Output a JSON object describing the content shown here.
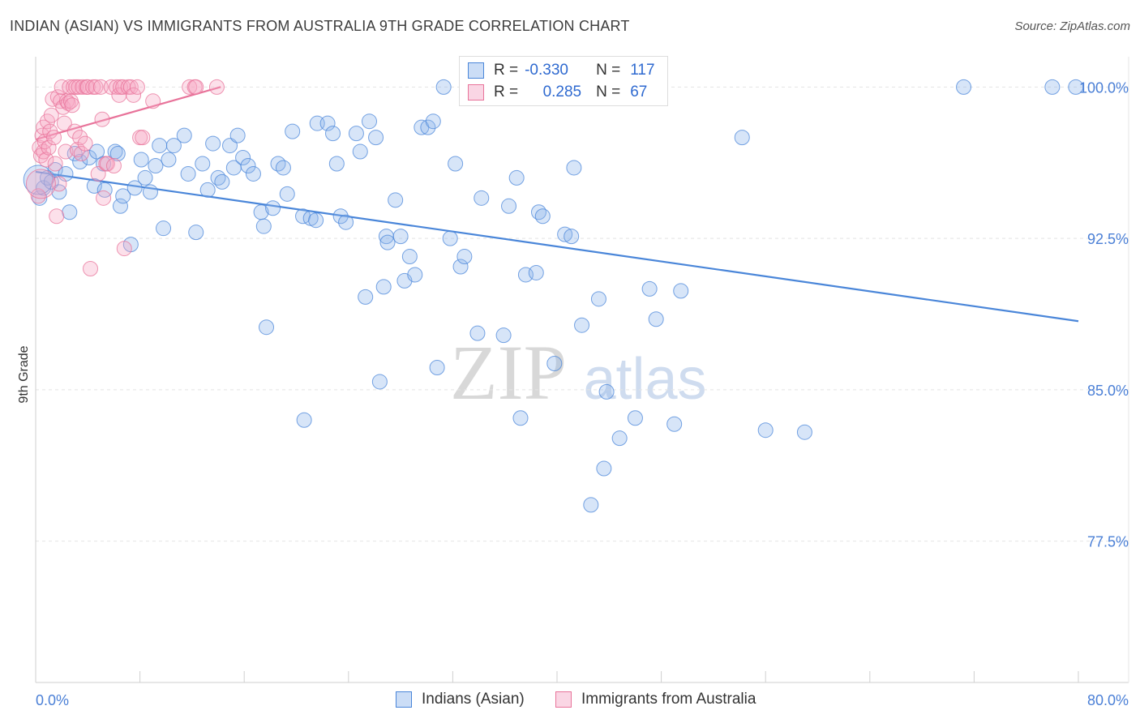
{
  "title": "INDIAN (ASIAN) VS IMMIGRANTS FROM AUSTRALIA 9TH GRADE CORRELATION CHART",
  "source": "Source: ZipAtlas.com",
  "watermark": "ZIPatlas",
  "legend": {
    "series1": {
      "r_label": "R =",
      "r_value": "-0.330",
      "n_label": "N =",
      "n_value": "117"
    },
    "series2": {
      "r_label": "R =",
      "r_value": "0.285",
      "n_label": "N =",
      "n_value": "67"
    }
  },
  "colors": {
    "blue": "#4a86d9",
    "blue_fill": "rgba(140,180,235,0.35)",
    "pink": "#e8739a",
    "pink_fill": "rgba(245,165,195,0.35)",
    "axis_text": "#4a7fd6",
    "grid": "#e4e4e4"
  },
  "chart_data": {
    "type": "scatter",
    "title": "INDIAN (ASIAN) VS IMMIGRANTS FROM AUSTRALIA 9TH GRADE CORRELATION CHART",
    "xlabel": "",
    "ylabel": "9th Grade",
    "xlim": [
      0,
      80
    ],
    "ylim": [
      70.5,
      101.5
    ],
    "x_tick_labels": [
      "0.0%",
      "80.0%"
    ],
    "y_ticks": [
      77.5,
      85.0,
      92.5,
      100.0
    ],
    "y_tick_labels": [
      "77.5%",
      "85.0%",
      "92.5%",
      "100.0%"
    ],
    "series": [
      {
        "name": "Indians (Asian)",
        "color": "#4a86d9",
        "trendline": {
          "x": [
            0,
            80
          ],
          "y": [
            95.8,
            88.4
          ]
        },
        "points": [
          [
            0.3,
            94.5
          ],
          [
            0.6,
            95.0
          ],
          [
            0.9,
            95.5
          ],
          [
            1.2,
            95.3
          ],
          [
            1.5,
            95.9
          ],
          [
            1.8,
            94.8
          ],
          [
            2.3,
            95.7
          ],
          [
            2.6,
            93.8
          ],
          [
            3.0,
            96.7
          ],
          [
            3.4,
            96.3
          ],
          [
            4.1,
            96.5
          ],
          [
            4.5,
            95.1
          ],
          [
            4.7,
            96.8
          ],
          [
            5.2,
            96.2
          ],
          [
            5.3,
            94.9
          ],
          [
            6.1,
            96.8
          ],
          [
            6.3,
            96.7
          ],
          [
            6.5,
            94.1
          ],
          [
            6.7,
            94.6
          ],
          [
            7.3,
            92.2
          ],
          [
            7.6,
            95.0
          ],
          [
            8.1,
            96.4
          ],
          [
            8.4,
            95.5
          ],
          [
            8.8,
            94.8
          ],
          [
            9.2,
            96.1
          ],
          [
            9.5,
            97.1
          ],
          [
            9.8,
            93.0
          ],
          [
            10.2,
            96.4
          ],
          [
            10.6,
            97.1
          ],
          [
            11.4,
            97.6
          ],
          [
            11.7,
            95.7
          ],
          [
            12.3,
            92.8
          ],
          [
            12.8,
            96.2
          ],
          [
            13.2,
            94.9
          ],
          [
            13.6,
            97.2
          ],
          [
            14.0,
            95.5
          ],
          [
            14.3,
            95.3
          ],
          [
            14.9,
            97.1
          ],
          [
            15.2,
            96.0
          ],
          [
            15.5,
            97.6
          ],
          [
            15.9,
            96.5
          ],
          [
            16.3,
            96.1
          ],
          [
            16.7,
            95.7
          ],
          [
            17.3,
            93.8
          ],
          [
            17.5,
            93.1
          ],
          [
            17.7,
            88.1
          ],
          [
            18.2,
            94.0
          ],
          [
            18.6,
            96.2
          ],
          [
            19.0,
            96.0
          ],
          [
            19.3,
            94.7
          ],
          [
            19.7,
            97.8
          ],
          [
            20.5,
            93.6
          ],
          [
            20.6,
            83.5
          ],
          [
            21.1,
            93.5
          ],
          [
            21.5,
            93.4
          ],
          [
            21.6,
            98.2
          ],
          [
            22.4,
            98.2
          ],
          [
            22.8,
            97.7
          ],
          [
            23.1,
            96.2
          ],
          [
            23.4,
            93.6
          ],
          [
            23.8,
            93.3
          ],
          [
            24.6,
            97.7
          ],
          [
            24.9,
            96.8
          ],
          [
            25.3,
            89.6
          ],
          [
            25.6,
            98.3
          ],
          [
            26.1,
            97.5
          ],
          [
            26.4,
            85.4
          ],
          [
            26.7,
            90.1
          ],
          [
            26.9,
            92.6
          ],
          [
            27.0,
            92.3
          ],
          [
            27.6,
            94.4
          ],
          [
            28.0,
            92.6
          ],
          [
            28.3,
            90.4
          ],
          [
            28.7,
            91.6
          ],
          [
            29.1,
            90.7
          ],
          [
            29.6,
            98.0
          ],
          [
            30.1,
            98.0
          ],
          [
            30.5,
            98.3
          ],
          [
            30.8,
            86.1
          ],
          [
            31.3,
            100.0
          ],
          [
            31.8,
            92.5
          ],
          [
            32.2,
            96.2
          ],
          [
            32.6,
            91.1
          ],
          [
            32.9,
            91.6
          ],
          [
            33.9,
            87.8
          ],
          [
            34.2,
            94.5
          ],
          [
            35.9,
            87.7
          ],
          [
            36.3,
            94.1
          ],
          [
            36.9,
            95.5
          ],
          [
            37.2,
            83.6
          ],
          [
            37.6,
            90.7
          ],
          [
            38.4,
            90.8
          ],
          [
            38.6,
            93.8
          ],
          [
            38.9,
            93.6
          ],
          [
            39.8,
            86.3
          ],
          [
            40.6,
            92.7
          ],
          [
            41.1,
            92.6
          ],
          [
            41.3,
            96.0
          ],
          [
            41.9,
            88.2
          ],
          [
            42.6,
            79.3
          ],
          [
            43.2,
            89.5
          ],
          [
            43.6,
            81.1
          ],
          [
            43.8,
            84.9
          ],
          [
            44.8,
            82.6
          ],
          [
            46.0,
            83.6
          ],
          [
            46.9,
            100.0
          ],
          [
            47.1,
            90.0
          ],
          [
            47.6,
            88.5
          ],
          [
            49.0,
            83.3
          ],
          [
            49.5,
            89.9
          ],
          [
            54.2,
            97.5
          ],
          [
            56.0,
            83.0
          ],
          [
            59.0,
            82.9
          ],
          [
            71.2,
            100.0
          ],
          [
            78.0,
            100.0
          ],
          [
            79.8,
            100.0
          ],
          [
            0.2,
            95.4
          ]
        ]
      },
      {
        "name": "Immigrants from Australia",
        "color": "#e8739a",
        "trendline": {
          "x": [
            0,
            14.2
          ],
          "y": [
            97.4,
            100.0
          ]
        },
        "points": [
          [
            0.2,
            94.6
          ],
          [
            0.3,
            97.0
          ],
          [
            0.4,
            96.6
          ],
          [
            0.5,
            97.6
          ],
          [
            0.6,
            98.0
          ],
          [
            0.6,
            96.8
          ],
          [
            0.7,
            97.3
          ],
          [
            0.8,
            96.4
          ],
          [
            0.9,
            98.3
          ],
          [
            1.0,
            97.0
          ],
          [
            1.1,
            97.8
          ],
          [
            1.2,
            98.6
          ],
          [
            1.3,
            99.4
          ],
          [
            1.4,
            97.5
          ],
          [
            1.5,
            96.2
          ],
          [
            1.6,
            93.6
          ],
          [
            1.7,
            99.5
          ],
          [
            1.8,
            95.2
          ],
          [
            1.9,
            99.3
          ],
          [
            2.0,
            100.0
          ],
          [
            2.1,
            99.0
          ],
          [
            2.2,
            98.2
          ],
          [
            2.3,
            96.8
          ],
          [
            2.4,
            99.3
          ],
          [
            2.5,
            99.2
          ],
          [
            2.6,
            100.0
          ],
          [
            2.7,
            99.3
          ],
          [
            2.8,
            99.1
          ],
          [
            2.9,
            100.0
          ],
          [
            3.0,
            97.8
          ],
          [
            3.1,
            100.0
          ],
          [
            3.2,
            96.9
          ],
          [
            3.3,
            100.0
          ],
          [
            3.4,
            97.5
          ],
          [
            3.5,
            96.7
          ],
          [
            3.6,
            100.0
          ],
          [
            3.8,
            97.2
          ],
          [
            3.9,
            100.0
          ],
          [
            4.0,
            100.0
          ],
          [
            4.2,
            91.0
          ],
          [
            4.4,
            100.0
          ],
          [
            4.6,
            100.0
          ],
          [
            4.8,
            95.7
          ],
          [
            5.0,
            100.0
          ],
          [
            5.1,
            98.4
          ],
          [
            5.2,
            94.5
          ],
          [
            5.4,
            96.2
          ],
          [
            5.5,
            96.2
          ],
          [
            5.8,
            100.0
          ],
          [
            6.0,
            96.1
          ],
          [
            6.2,
            100.0
          ],
          [
            6.4,
            99.6
          ],
          [
            6.5,
            100.0
          ],
          [
            6.7,
            100.0
          ],
          [
            6.8,
            92.0
          ],
          [
            7.1,
            100.0
          ],
          [
            7.3,
            100.0
          ],
          [
            7.5,
            99.6
          ],
          [
            7.8,
            100.0
          ],
          [
            8.0,
            97.5
          ],
          [
            8.2,
            97.5
          ],
          [
            9.0,
            99.3
          ],
          [
            11.8,
            100.0
          ],
          [
            12.2,
            100.0
          ],
          [
            12.3,
            100.0
          ],
          [
            13.9,
            100.0
          ],
          [
            0.4,
            95.2
          ]
        ]
      }
    ]
  },
  "bottom_legend": {
    "series1": "Indians (Asian)",
    "series2": "Immigrants from Australia"
  }
}
